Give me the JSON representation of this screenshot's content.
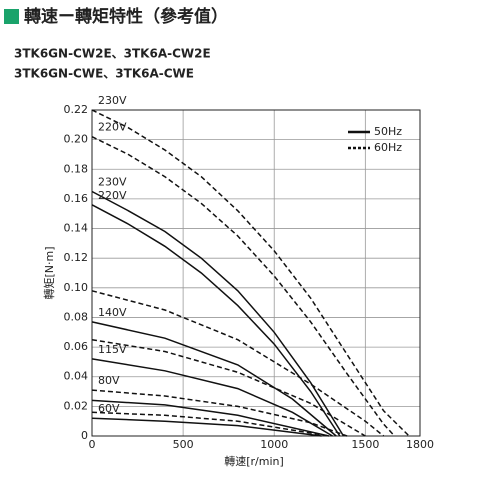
{
  "chart_data": {
    "type": "line",
    "title": "轉速ー轉矩特性（參考值）",
    "subtitles": [
      "3TK6GN-CW2E、3TK6A-CW2E",
      "3TK6GN-CWE、3TK6A-CWE"
    ],
    "x_label": "轉速[r/min]",
    "y_label": "轉矩[N·m]",
    "xlim": [
      0,
      1800
    ],
    "xticks": [
      0,
      500,
      1000,
      1500,
      1800
    ],
    "ylim": [
      0,
      0.22
    ],
    "yticks": [
      0,
      0.02,
      0.04,
      0.06,
      0.08,
      {
        "value": 0.1,
        "label": "0.10"
      },
      0.12,
      0.14,
      0.16,
      0.18,
      {
        "value": 0.2,
        "label": "0.20"
      },
      0.22
    ],
    "grid": true,
    "color": "#111111",
    "legend_position": "upper-right",
    "legend": [
      {
        "label": "50Hz",
        "dashed": false
      },
      {
        "label": "60Hz",
        "dashed": true
      }
    ],
    "series": [
      {
        "name": "230V",
        "dashed": true,
        "x": [
          0,
          200,
          400,
          600,
          800,
          1000,
          1200,
          1400,
          1600,
          1740
        ],
        "values": [
          0.22,
          0.208,
          0.193,
          0.175,
          0.152,
          0.125,
          0.093,
          0.055,
          0.017,
          0
        ]
      },
      {
        "name": "220V",
        "dashed": true,
        "x": [
          0,
          200,
          400,
          600,
          800,
          1000,
          1200,
          1400,
          1600,
          1660
        ],
        "values": [
          0.202,
          0.19,
          0.175,
          0.157,
          0.135,
          0.108,
          0.077,
          0.042,
          0.008,
          0
        ]
      },
      {
        "name": "230V",
        "dashed": false,
        "x": [
          0,
          200,
          400,
          600,
          800,
          1000,
          1200,
          1380
        ],
        "values": [
          0.165,
          0.152,
          0.138,
          0.12,
          0.098,
          0.07,
          0.036,
          0
        ]
      },
      {
        "name": "220V",
        "dashed": false,
        "x": [
          0,
          200,
          400,
          600,
          800,
          1000,
          1200,
          1360
        ],
        "values": [
          0.156,
          0.143,
          0.128,
          0.11,
          0.088,
          0.062,
          0.03,
          0
        ]
      },
      {
        "dashed": true,
        "x": [
          0,
          400,
          800,
          1200,
          1500,
          1600
        ],
        "values": [
          0.098,
          0.085,
          0.065,
          0.035,
          0.01,
          0
        ]
      },
      {
        "name": "140V",
        "dashed": false,
        "x": [
          0,
          400,
          800,
          1100,
          1340
        ],
        "values": [
          0.077,
          0.066,
          0.048,
          0.025,
          0
        ]
      },
      {
        "dashed": true,
        "x": [
          0,
          400,
          800,
          1200,
          1500
        ],
        "values": [
          0.065,
          0.057,
          0.043,
          0.022,
          0
        ]
      },
      {
        "name": "115V",
        "dashed": false,
        "x": [
          0,
          400,
          800,
          1100,
          1320
        ],
        "values": [
          0.052,
          0.044,
          0.032,
          0.016,
          0
        ]
      },
      {
        "name": "80V",
        "dashed": true,
        "x": [
          0,
          400,
          800,
          1200,
          1400
        ],
        "values": [
          0.031,
          0.027,
          0.02,
          0.009,
          0
        ]
      },
      {
        "dashed": false,
        "x": [
          0,
          400,
          800,
          1300
        ],
        "values": [
          0.024,
          0.021,
          0.014,
          0
        ]
      },
      {
        "dashed": true,
        "x": [
          0,
          400,
          800,
          1300
        ],
        "values": [
          0.016,
          0.014,
          0.01,
          0
        ]
      },
      {
        "name": "60V",
        "dashed": false,
        "x": [
          0,
          400,
          800,
          1260
        ],
        "values": [
          0.012,
          0.01,
          0.007,
          0
        ]
      }
    ]
  }
}
